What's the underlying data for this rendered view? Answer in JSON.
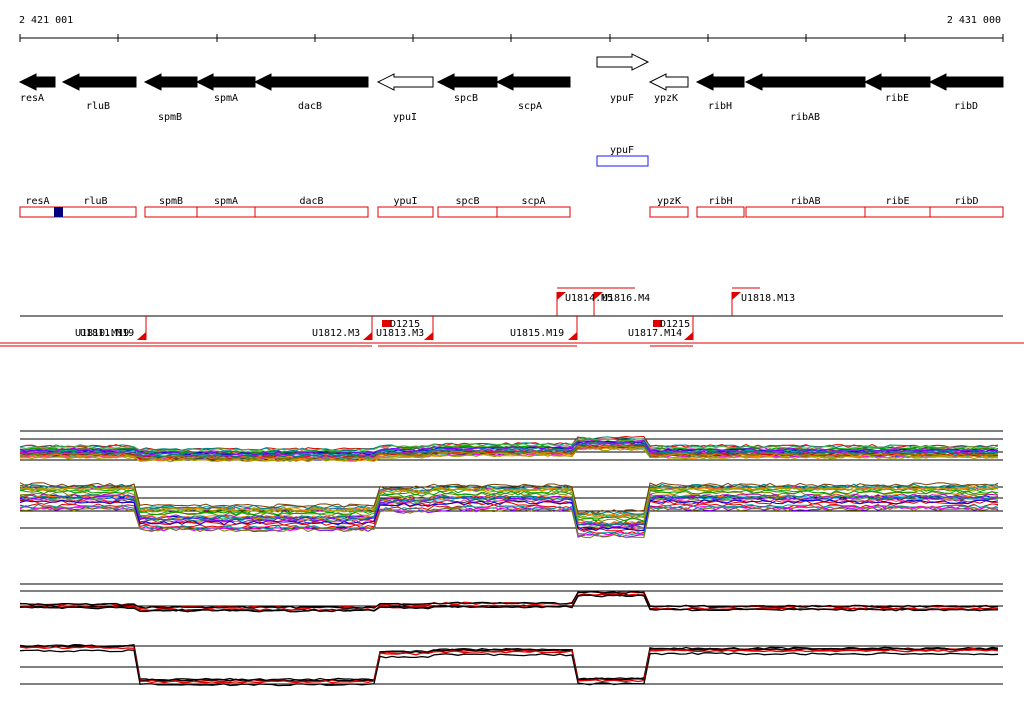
{
  "ruler": {
    "start_label": "2 421 001",
    "end_label": "2 431 000"
  },
  "genes": [
    {
      "id": "resA",
      "label": "resA",
      "strand": "-",
      "style": "filled"
    },
    {
      "id": "rluB",
      "label": "rluB",
      "strand": "-",
      "style": "filled"
    },
    {
      "id": "spmB",
      "label": "spmB",
      "strand": "-",
      "style": "filled"
    },
    {
      "id": "spmA",
      "label": "spmA",
      "strand": "-",
      "style": "filled"
    },
    {
      "id": "dacB",
      "label": "dacB",
      "strand": "-",
      "style": "filled"
    },
    {
      "id": "ypuI",
      "label": "ypuI",
      "strand": "-",
      "style": "open"
    },
    {
      "id": "spcB",
      "label": "spcB",
      "strand": "-",
      "style": "filled"
    },
    {
      "id": "scpA",
      "label": "scpA",
      "strand": "-",
      "style": "filled"
    },
    {
      "id": "ypuF",
      "label": "ypuF",
      "strand": "+",
      "style": "open"
    },
    {
      "id": "ypzK",
      "label": "ypzK",
      "strand": "-",
      "style": "open"
    },
    {
      "id": "ribH",
      "label": "ribH",
      "strand": "-",
      "style": "filled"
    },
    {
      "id": "ribAB",
      "label": "ribAB",
      "strand": "-",
      "style": "filled"
    },
    {
      "id": "ribE",
      "label": "ribE",
      "strand": "-",
      "style": "filled"
    },
    {
      "id": "ribD",
      "label": "ribD",
      "strand": "-",
      "style": "filled"
    }
  ],
  "plus_track": [
    {
      "id": "ypuF",
      "label": "ypuF",
      "color": "#1a1aff"
    }
  ],
  "minus_track_color": "#e00000",
  "minus_track": [
    {
      "id": "resA",
      "label": "resA"
    },
    {
      "id": "rluB",
      "label": "rluB"
    },
    {
      "id": "spmB",
      "label": "spmB"
    },
    {
      "id": "spmA",
      "label": "spmA"
    },
    {
      "id": "dacB",
      "label": "dacB"
    },
    {
      "id": "ypuI",
      "label": "ypuI"
    },
    {
      "id": "spcB",
      "label": "spcB"
    },
    {
      "id": "scpA",
      "label": "scpA"
    },
    {
      "id": "ypzK",
      "label": "ypzK"
    },
    {
      "id": "ribH",
      "label": "ribH"
    },
    {
      "id": "ribAB",
      "label": "ribAB"
    },
    {
      "id": "ribE",
      "label": "ribE"
    },
    {
      "id": "ribD",
      "label": "ribD"
    }
  ],
  "segments_upper": [
    {
      "id": "U1814.M5",
      "label": "U1814.M5"
    },
    {
      "id": "U1816.M4",
      "label": "U1816.M4"
    },
    {
      "id": "U1818.M13",
      "label": "U1818.M13"
    }
  ],
  "segments_lower": [
    {
      "id": "U1810.M19",
      "label": "U1810.M19"
    },
    {
      "id": "U1811.M19",
      "label": "U1811.M19"
    },
    {
      "id": "U1812.M3",
      "label": "U1812.M3"
    },
    {
      "id": "U1813.M3",
      "label": "U1813.M3"
    },
    {
      "id": "U1815.M19",
      "label": "U1815.M19"
    },
    {
      "id": "U1817.M14",
      "label": "U1817.M14"
    }
  ],
  "motif_boxes": [
    {
      "id": "D1215-a",
      "label": "D1215"
    },
    {
      "id": "D1215-b",
      "label": "D1215"
    }
  ],
  "colors": {
    "accent_red": "#e00000",
    "marker_blue": "#00007f",
    "feature_blue": "#1a1aff"
  }
}
